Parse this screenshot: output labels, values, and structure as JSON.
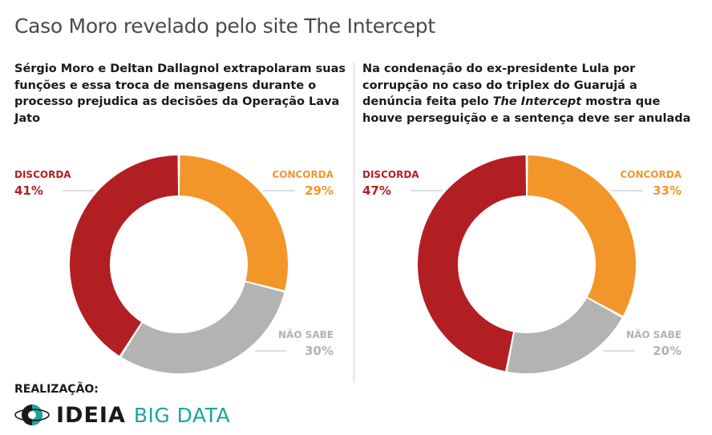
{
  "title": "Caso Moro revelado pelo site The Intercept",
  "footer": {
    "label": "REALIZAÇÃO:",
    "logo_ideia": "IDEIA",
    "logo_big": "BIG DATA"
  },
  "colors": {
    "concorda": "#f2962a",
    "nao_sabe": "#b3b3b3",
    "discorda": "#b21f23"
  },
  "chart_data": [
    {
      "type": "pie",
      "question_parts": [
        "Sérgio Moro e Deltan Dallagnol extrapolaram suas funções e essa troca de mensagens durante o processo prejudica as decisões da Operação Lava Jato"
      ],
      "slices": [
        {
          "name": "CONCORDA",
          "value": 29,
          "label": "29%"
        },
        {
          "name": "NÃO SABE",
          "value": 30,
          "label": "30%"
        },
        {
          "name": "DISCORDA",
          "value": 41,
          "label": "41%"
        }
      ]
    },
    {
      "type": "pie",
      "question_parts": [
        "Na condenação do ex-presidente Lula por corrupção no caso do triplex do Guarujá a denúncia feita pelo ",
        "The Intercept",
        " mostra que houve perseguição e a sentença deve ser anulada"
      ],
      "slices": [
        {
          "name": "CONCORDA",
          "value": 33,
          "label": "33%"
        },
        {
          "name": "NÃO SABE",
          "value": 20,
          "label": "20%"
        },
        {
          "name": "DISCORDA",
          "value": 47,
          "label": "47%"
        }
      ]
    }
  ]
}
